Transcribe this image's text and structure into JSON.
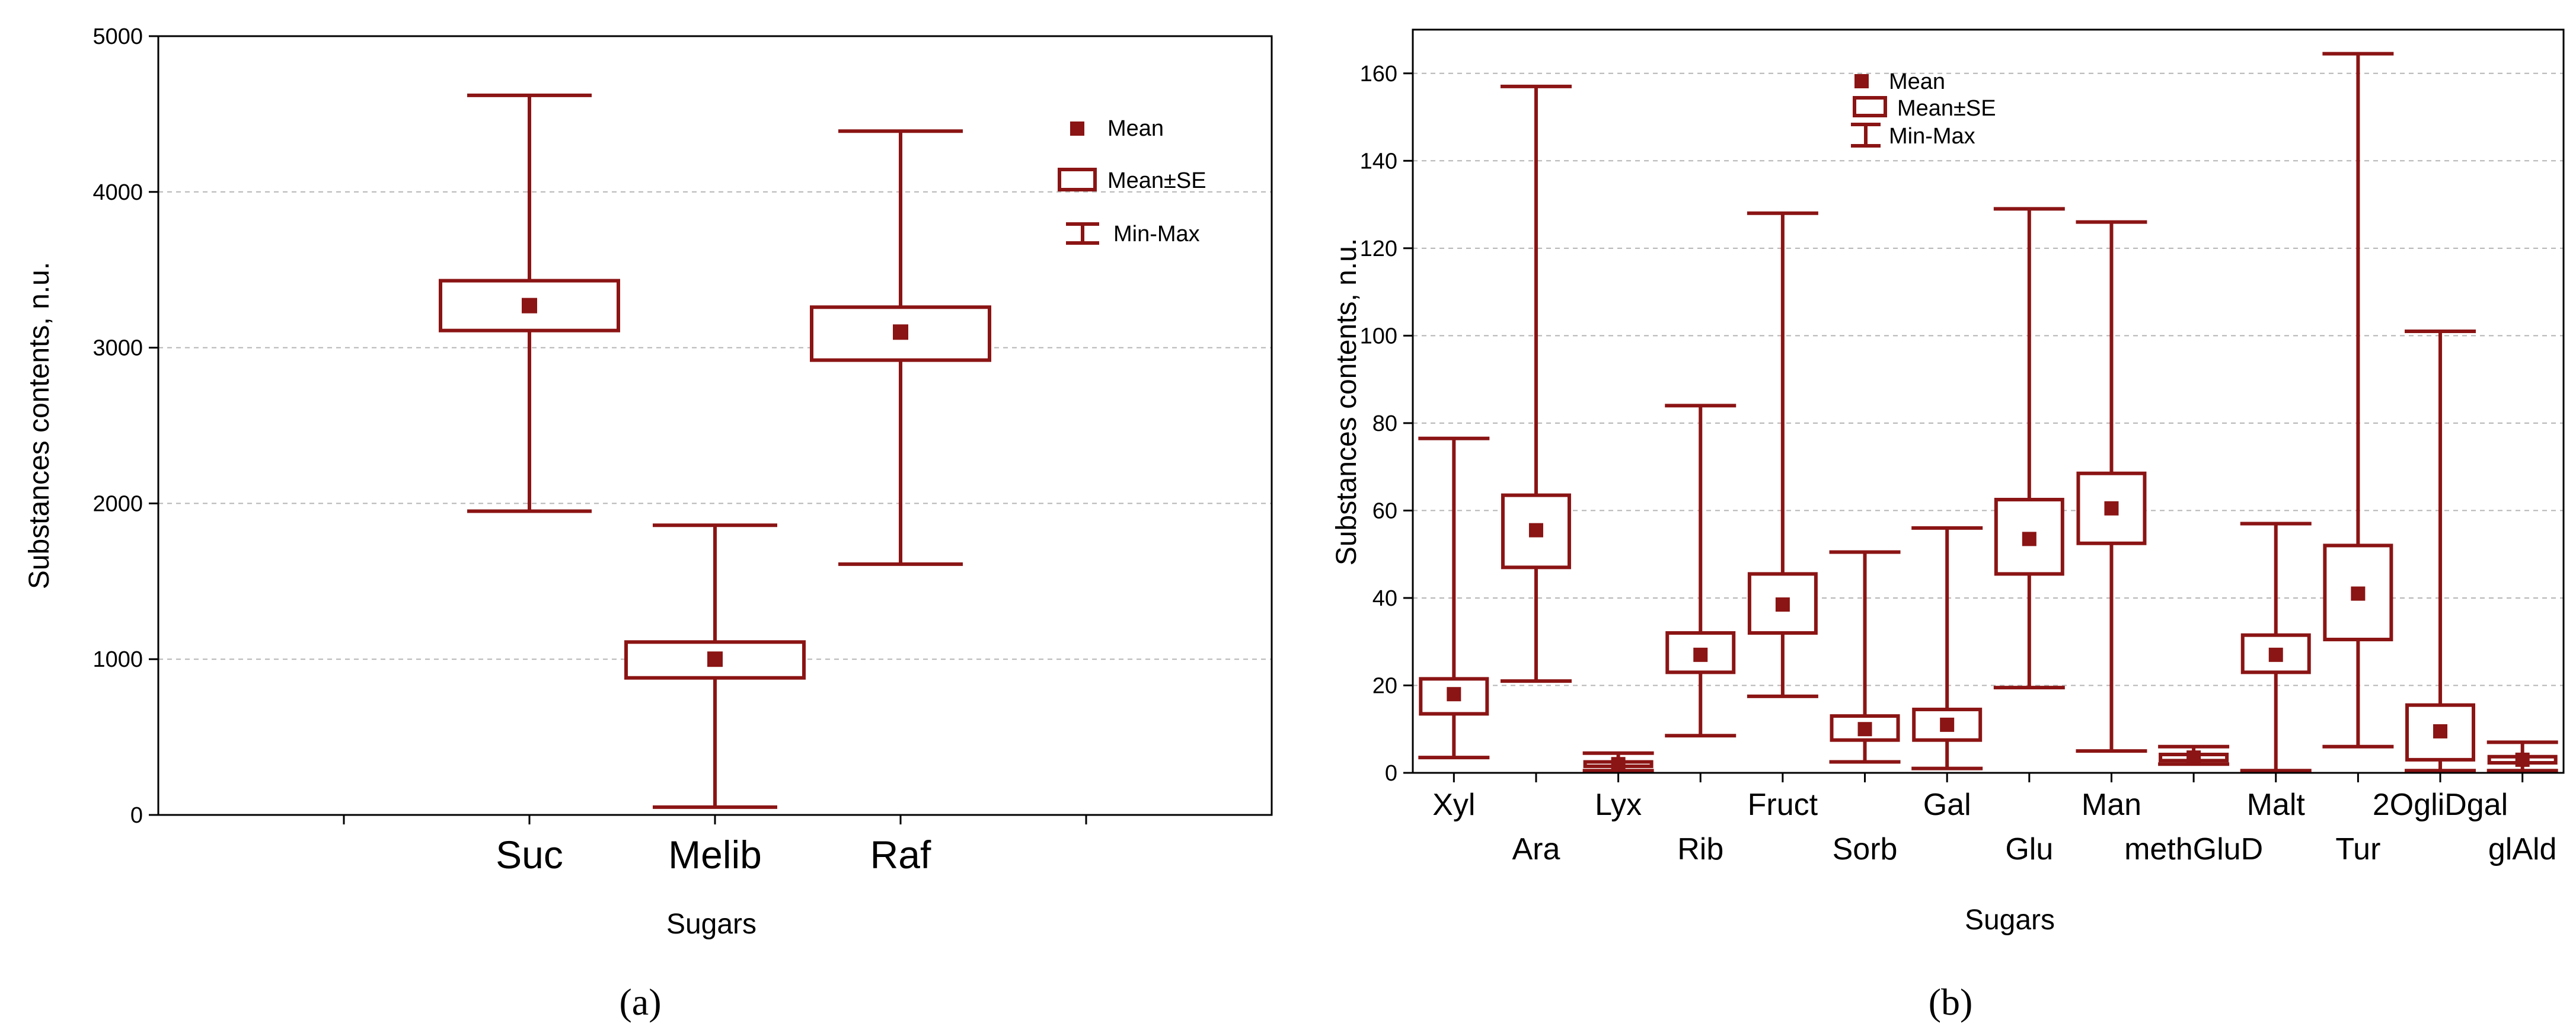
{
  "colors": {
    "series": "#8b1414",
    "grid": "#b5b5b5",
    "axis": "#000000"
  },
  "legend": {
    "mean": "Mean",
    "mean_se": "Mean±SE",
    "min_max": "Min-Max"
  },
  "chart_data": [
    {
      "type": "boxplot",
      "caption": "(a)",
      "xlabel": "Sugars",
      "ylabel": "Substances contents, n.u.",
      "ylim": [
        0,
        5000
      ],
      "yticks": [
        0,
        1000,
        2000,
        3000,
        4000,
        5000
      ],
      "grid": true,
      "legend_position": "top-right",
      "categories": [
        "Suc",
        "Melib",
        "Raf"
      ],
      "category_slots": [
        2,
        3,
        4
      ],
      "slot_count": 6,
      "series": [
        {
          "name": "Suc",
          "min": 1950,
          "se_low": 3110,
          "mean": 3270,
          "se_high": 3430,
          "max": 4620
        },
        {
          "name": "Melib",
          "min": 50,
          "se_low": 880,
          "mean": 1000,
          "se_high": 1110,
          "max": 1860
        },
        {
          "name": "Raf",
          "min": 1610,
          "se_low": 2920,
          "mean": 3100,
          "se_high": 3260,
          "max": 4390
        }
      ]
    },
    {
      "type": "boxplot",
      "caption": "(b)",
      "xlabel": "Sugars",
      "ylabel": "Substances contents, n.u.",
      "ylim": [
        0,
        170
      ],
      "yticks": [
        0,
        20,
        40,
        60,
        80,
        100,
        120,
        140,
        160
      ],
      "grid": true,
      "legend_position": "top-center",
      "categories": [
        "Xyl",
        "Ara",
        "Lyx",
        "Rib",
        "Fruct",
        "Sorb",
        "Gal",
        "Glu",
        "Man",
        "methGluD",
        "Malt",
        "Tur",
        "2OgliDgal",
        "glAld"
      ],
      "series": [
        {
          "name": "Xyl",
          "min": 3.5,
          "se_low": 13.5,
          "mean": 18,
          "se_high": 21.5,
          "max": 76.5
        },
        {
          "name": "Ara",
          "min": 21,
          "se_low": 47,
          "mean": 55.5,
          "se_high": 63.5,
          "max": 157
        },
        {
          "name": "Lyx",
          "min": 0.5,
          "se_low": 1.5,
          "mean": 2,
          "se_high": 2.5,
          "max": 4.5
        },
        {
          "name": "Rib",
          "min": 8.5,
          "se_low": 23,
          "mean": 27,
          "se_high": 32,
          "max": 84
        },
        {
          "name": "Fruct",
          "min": 17.5,
          "se_low": 32,
          "mean": 38.5,
          "se_high": 45.5,
          "max": 128
        },
        {
          "name": "Sorb",
          "min": 2.5,
          "se_low": 7.5,
          "mean": 10,
          "se_high": 13,
          "max": 50.5
        },
        {
          "name": "Gal",
          "min": 1,
          "se_low": 7.5,
          "mean": 11,
          "se_high": 14.5,
          "max": 56
        },
        {
          "name": "Glu",
          "min": 19.5,
          "se_low": 45.5,
          "mean": 53.5,
          "se_high": 62.5,
          "max": 129
        },
        {
          "name": "Man",
          "min": 5,
          "se_low": 52.5,
          "mean": 60.5,
          "se_high": 68.5,
          "max": 126
        },
        {
          "name": "methGluD",
          "min": 2,
          "se_low": 2.8,
          "mean": 3.5,
          "se_high": 4.2,
          "max": 6
        },
        {
          "name": "Malt",
          "min": 0.5,
          "se_low": 23,
          "mean": 27,
          "se_high": 31.5,
          "max": 57
        },
        {
          "name": "Tur",
          "min": 6,
          "se_low": 30.5,
          "mean": 41,
          "se_high": 52,
          "max": 164.5
        },
        {
          "name": "2OgliDgal",
          "min": 0.5,
          "se_low": 3,
          "mean": 9.5,
          "se_high": 15.5,
          "max": 101
        },
        {
          "name": "glAld",
          "min": 0.5,
          "se_low": 2.3,
          "mean": 3,
          "se_high": 3.7,
          "max": 7
        }
      ]
    }
  ]
}
